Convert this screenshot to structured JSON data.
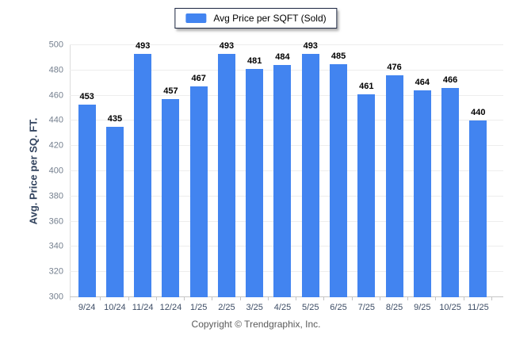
{
  "legend": {
    "label": "Avg Price per SQFT (Sold)"
  },
  "footer": {
    "copyright": "Copyright © Trendgraphix, Inc."
  },
  "colors": {
    "bar": "#4284F0",
    "legend_border": "#1b2540",
    "grid": "#ededed",
    "axis": "#c6c6c6",
    "y_tick_label": "#75808f",
    "x_tick_label": "#3d4d66",
    "y_title": "#32435e",
    "value_label": "#000000",
    "footer_text": "#5a5a5a"
  },
  "chart_data": {
    "type": "bar",
    "title": "",
    "categories": [
      "9/24",
      "10/24",
      "11/24",
      "12/24",
      "1/25",
      "2/25",
      "3/25",
      "4/25",
      "5/25",
      "6/25",
      "7/25",
      "8/25",
      "9/25",
      "10/25",
      "11/25"
    ],
    "values": [
      453,
      435,
      493,
      457,
      467,
      493,
      481,
      484,
      493,
      485,
      461,
      476,
      464,
      466,
      440
    ],
    "xlabel": "",
    "ylabel": "Avg. Price per SQ. FT.",
    "ylim": [
      300,
      500
    ],
    "ytick_step": 20,
    "grid": true,
    "legend": [
      "Avg Price per SQFT (Sold)"
    ],
    "legend_position": "top",
    "bar_color": "#4284F0",
    "value_labels": true
  }
}
